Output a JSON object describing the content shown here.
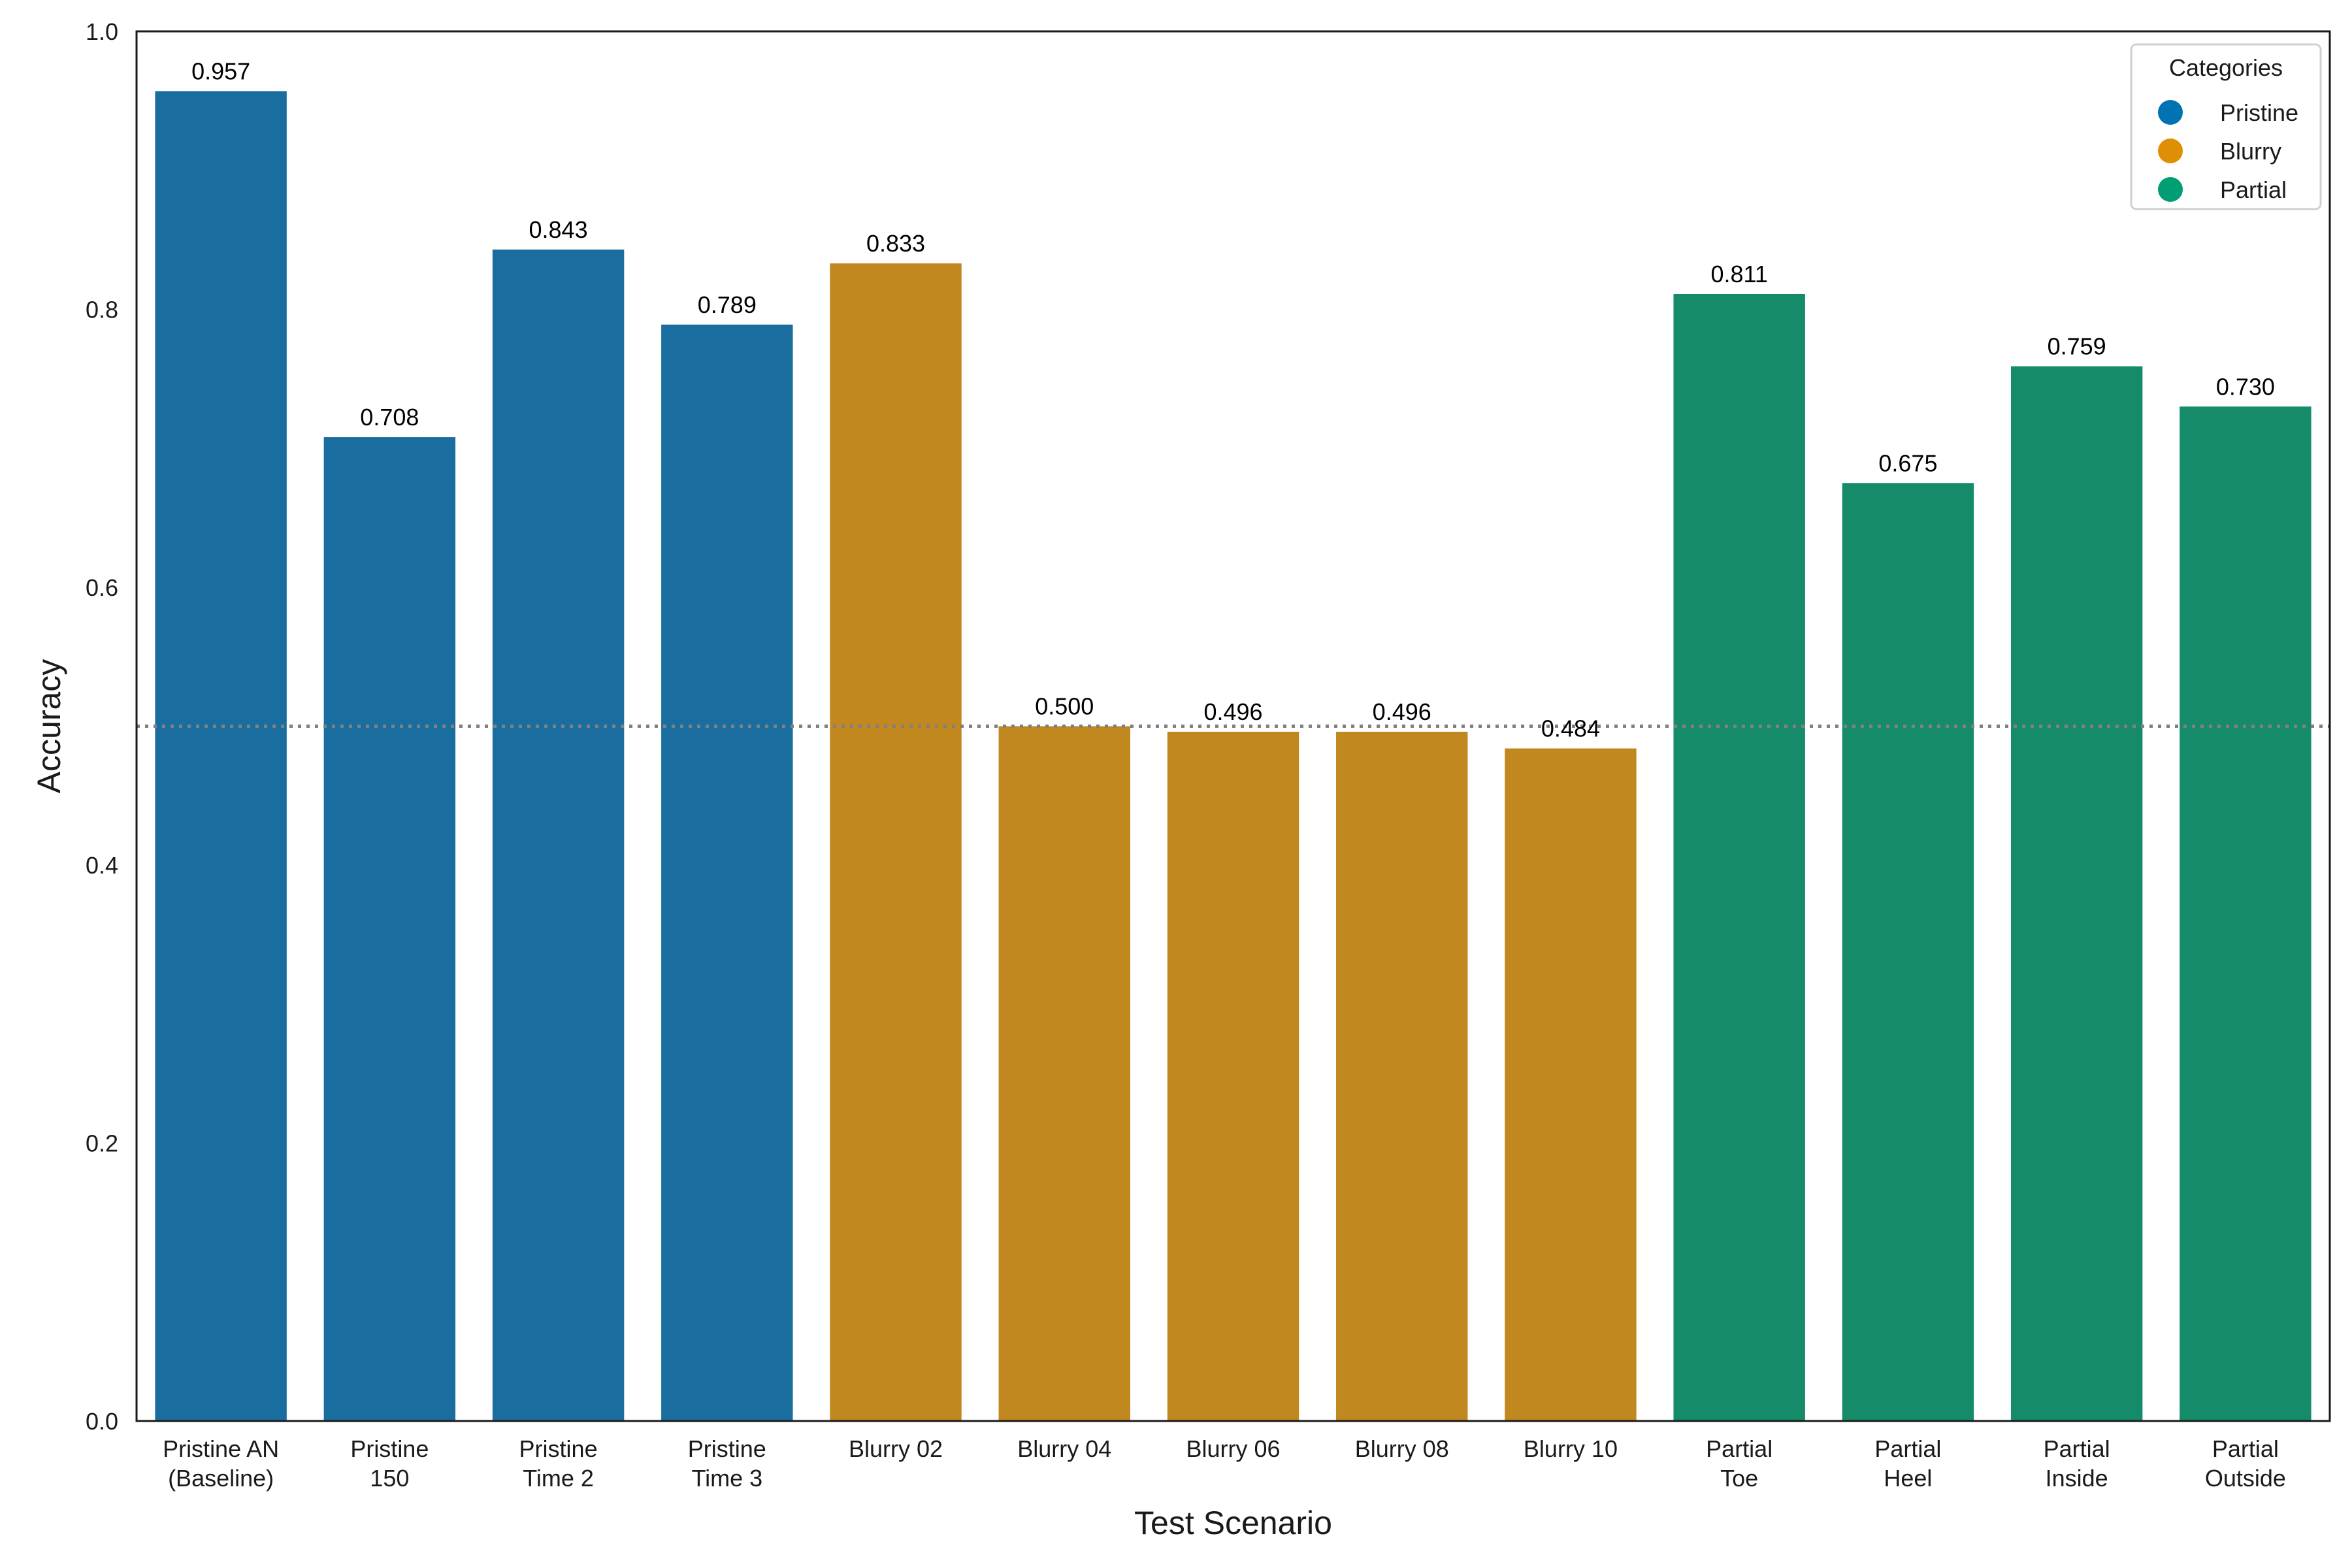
{
  "chart_data": {
    "type": "bar",
    "title": "",
    "xlabel": "Test Scenario",
    "ylabel": "Accuracy",
    "ylim": [
      0,
      1.0
    ],
    "yticks": [
      "0.0",
      "0.2",
      "0.4",
      "0.6",
      "0.8",
      "1.0"
    ],
    "reference_line": {
      "y": 0.5,
      "style": "dotted",
      "color": "#808080"
    },
    "grid": false,
    "legend": {
      "title": "Categories",
      "placement": "top-right",
      "entries": [
        {
          "label": "Pristine",
          "color": "#0173b2"
        },
        {
          "label": "Blurry",
          "color": "#de8f05"
        },
        {
          "label": "Partial",
          "color": "#029e73"
        }
      ]
    },
    "bar_colors": {
      "Pristine": "#1a6e9f",
      "Blurry": "#c28820",
      "Partial": "#168b6a"
    },
    "categories": [
      "Pristine AN\n(Baseline)",
      "Pristine\n150",
      "Pristine\nTime 2",
      "Pristine\nTime 3",
      "Blurry 02",
      "Blurry 04",
      "Blurry 06",
      "Blurry 08",
      "Blurry 10",
      "Partial\nToe",
      "Partial\nHeel",
      "Partial\nInside",
      "Partial\nOutside"
    ],
    "groups": [
      "Pristine",
      "Pristine",
      "Pristine",
      "Pristine",
      "Blurry",
      "Blurry",
      "Blurry",
      "Blurry",
      "Blurry",
      "Partial",
      "Partial",
      "Partial",
      "Partial"
    ],
    "values": [
      0.957,
      0.708,
      0.843,
      0.789,
      0.833,
      0.5,
      0.496,
      0.496,
      0.484,
      0.811,
      0.675,
      0.759,
      0.73
    ],
    "value_labels": [
      "0.957",
      "0.708",
      "0.843",
      "0.789",
      "0.833",
      "0.500",
      "0.496",
      "0.496",
      "0.484",
      "0.811",
      "0.675",
      "0.759",
      "0.730"
    ]
  }
}
